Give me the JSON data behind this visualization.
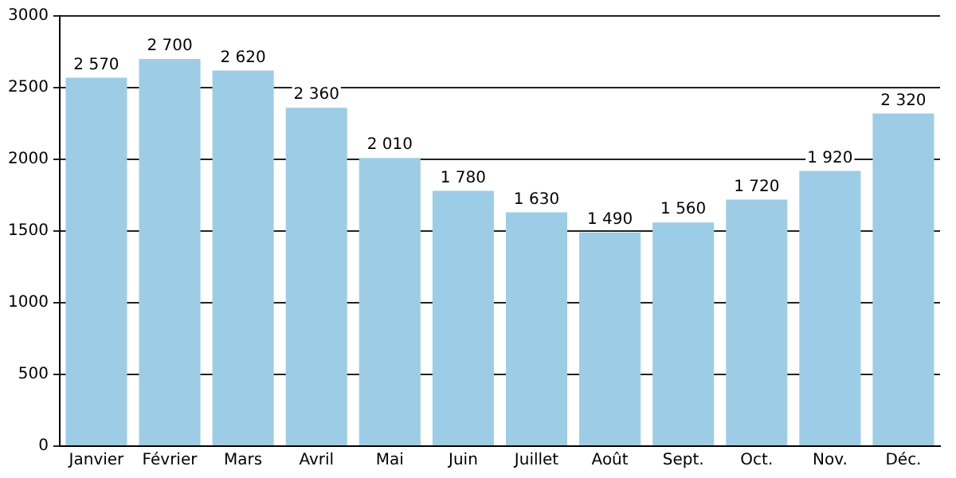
{
  "chart_data": {
    "type": "bar",
    "categories": [
      "Janvier",
      "Février",
      "Mars",
      "Avril",
      "Mai",
      "Juin",
      "Juillet",
      "Août",
      "Sept.",
      "Oct.",
      "Nov.",
      "Déc."
    ],
    "values": [
      2570,
      2700,
      2620,
      2360,
      2010,
      1780,
      1630,
      1490,
      1560,
      1720,
      1920,
      2320
    ],
    "value_labels": [
      "2 570",
      "2 700",
      "2 620",
      "2 360",
      "2 010",
      "1 780",
      "1 630",
      "1 490",
      "1 560",
      "1 720",
      "1 920",
      "2 320"
    ],
    "color": "#9dcde6",
    "ylim": [
      0,
      3000
    ],
    "yticks": [
      0,
      500,
      1000,
      1500,
      2000,
      2500,
      3000
    ],
    "grid": "y",
    "legend": false
  }
}
